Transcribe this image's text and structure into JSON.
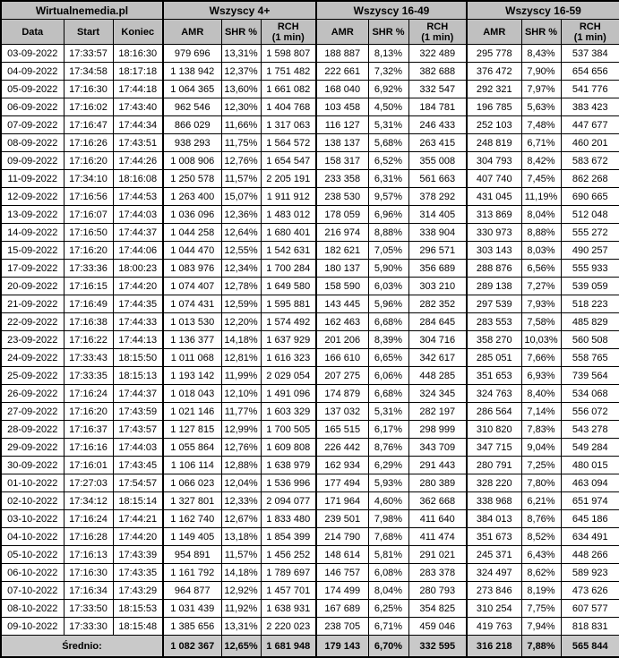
{
  "colors": {
    "header_bg": "#c0c0c0",
    "average_row_bg": "#c9c9c9",
    "row_bg": "#ffffff",
    "border": "#000000",
    "text": "#000000"
  },
  "chart_data": {
    "type": "table",
    "title": "Wirtualnemedia.pl",
    "column_groups": [
      {
        "label": "Wirtualnemedia.pl",
        "span": 3
      },
      {
        "label": "Wszyscy 4+",
        "span": 3
      },
      {
        "label": "Wszyscy 16-49",
        "span": 3
      },
      {
        "label": "Wszyscy 16-59",
        "span": 3
      }
    ],
    "columns": {
      "data": "Data",
      "start": "Start",
      "end": "Koniec",
      "amr": "AMR",
      "shr": "SHR %",
      "rch_line1": "RCH",
      "rch_line2": "(1 min)"
    },
    "rows": [
      [
        "03-09-2022",
        "17:33:57",
        "18:16:30",
        "979 696",
        "13,31%",
        "1 598 807",
        "188 887",
        "8,13%",
        "322 489",
        "295 778",
        "8,43%",
        "537 384"
      ],
      [
        "04-09-2022",
        "17:34:58",
        "18:17:18",
        "1 138 942",
        "12,37%",
        "1 751 482",
        "222 661",
        "7,32%",
        "382 688",
        "376 472",
        "7,90%",
        "654 656"
      ],
      [
        "05-09-2022",
        "17:16:30",
        "17:44:18",
        "1 064 365",
        "13,60%",
        "1 661 082",
        "168 040",
        "6,92%",
        "332 547",
        "292 321",
        "7,97%",
        "541 776"
      ],
      [
        "06-09-2022",
        "17:16:02",
        "17:43:40",
        "962 546",
        "12,30%",
        "1 404 768",
        "103 458",
        "4,50%",
        "184 781",
        "196 785",
        "5,63%",
        "383 423"
      ],
      [
        "07-09-2022",
        "17:16:47",
        "17:44:34",
        "866 029",
        "11,66%",
        "1 317 063",
        "116 127",
        "5,31%",
        "246 433",
        "252 103",
        "7,48%",
        "447 677"
      ],
      [
        "08-09-2022",
        "17:16:26",
        "17:43:51",
        "938 293",
        "11,75%",
        "1 564 572",
        "138 137",
        "5,68%",
        "263 415",
        "248 819",
        "6,71%",
        "460 201"
      ],
      [
        "09-09-2022",
        "17:16:20",
        "17:44:26",
        "1 008 906",
        "12,76%",
        "1 654 547",
        "158 317",
        "6,52%",
        "355 008",
        "304 793",
        "8,42%",
        "583 672"
      ],
      [
        "11-09-2022",
        "17:34:10",
        "18:16:08",
        "1 250 578",
        "11,57%",
        "2 205 191",
        "233 358",
        "6,31%",
        "561 663",
        "407 740",
        "7,45%",
        "862 268"
      ],
      [
        "12-09-2022",
        "17:16:56",
        "17:44:53",
        "1 263 400",
        "15,07%",
        "1 911 912",
        "238 530",
        "9,57%",
        "378 292",
        "431 045",
        "11,19%",
        "690 665"
      ],
      [
        "13-09-2022",
        "17:16:07",
        "17:44:03",
        "1 036 096",
        "12,36%",
        "1 483 012",
        "178 059",
        "6,96%",
        "314 405",
        "313 869",
        "8,04%",
        "512 048"
      ],
      [
        "14-09-2022",
        "17:16:50",
        "17:44:37",
        "1 044 258",
        "12,64%",
        "1 680 401",
        "216 974",
        "8,88%",
        "338 904",
        "330 973",
        "8,88%",
        "555 272"
      ],
      [
        "15-09-2022",
        "17:16:20",
        "17:44:06",
        "1 044 470",
        "12,55%",
        "1 542 631",
        "182 621",
        "7,05%",
        "296 571",
        "303 143",
        "8,03%",
        "490 257"
      ],
      [
        "17-09-2022",
        "17:33:36",
        "18:00:23",
        "1 083 976",
        "12,34%",
        "1 700 284",
        "180 137",
        "5,90%",
        "356 689",
        "288 876",
        "6,56%",
        "555 933"
      ],
      [
        "20-09-2022",
        "17:16:15",
        "17:44:20",
        "1 074 407",
        "12,78%",
        "1 649 580",
        "158 590",
        "6,03%",
        "303 210",
        "289 138",
        "7,27%",
        "539 059"
      ],
      [
        "21-09-2022",
        "17:16:49",
        "17:44:35",
        "1 074 431",
        "12,59%",
        "1 595 881",
        "143 445",
        "5,96%",
        "282 352",
        "297 539",
        "7,93%",
        "518 223"
      ],
      [
        "22-09-2022",
        "17:16:38",
        "17:44:33",
        "1 013 530",
        "12,20%",
        "1 574 492",
        "162 463",
        "6,68%",
        "284 645",
        "283 553",
        "7,58%",
        "485 829"
      ],
      [
        "23-09-2022",
        "17:16:22",
        "17:44:13",
        "1 136 377",
        "14,18%",
        "1 637 929",
        "201 206",
        "8,39%",
        "304 716",
        "358 270",
        "10,03%",
        "560 508"
      ],
      [
        "24-09-2022",
        "17:33:43",
        "18:15:50",
        "1 011 068",
        "12,81%",
        "1 616 323",
        "166 610",
        "6,65%",
        "342 617",
        "285 051",
        "7,66%",
        "558 765"
      ],
      [
        "25-09-2022",
        "17:33:35",
        "18:15:13",
        "1 193 142",
        "11,99%",
        "2 029 054",
        "207 275",
        "6,06%",
        "448 285",
        "351 653",
        "6,93%",
        "739 564"
      ],
      [
        "26-09-2022",
        "17:16:24",
        "17:44:37",
        "1 018 043",
        "12,10%",
        "1 491 096",
        "174 879",
        "6,68%",
        "324 345",
        "324 763",
        "8,40%",
        "534 068"
      ],
      [
        "27-09-2022",
        "17:16:20",
        "17:43:59",
        "1 021 146",
        "11,77%",
        "1 603 329",
        "137 032",
        "5,31%",
        "282 197",
        "286 564",
        "7,14%",
        "556 072"
      ],
      [
        "28-09-2022",
        "17:16:37",
        "17:43:57",
        "1 127 815",
        "12,99%",
        "1 700 505",
        "165 515",
        "6,17%",
        "298 999",
        "310 820",
        "7,83%",
        "543 278"
      ],
      [
        "29-09-2022",
        "17:16:16",
        "17:44:03",
        "1 055 864",
        "12,76%",
        "1 609 808",
        "226 442",
        "8,76%",
        "343 709",
        "347 715",
        "9,04%",
        "549 284"
      ],
      [
        "30-09-2022",
        "17:16:01",
        "17:43:45",
        "1 106 114",
        "12,88%",
        "1 638 979",
        "162 934",
        "6,29%",
        "291 443",
        "280 791",
        "7,25%",
        "480 015"
      ],
      [
        "01-10-2022",
        "17:27:03",
        "17:54:57",
        "1 066 023",
        "12,04%",
        "1 536 996",
        "177 494",
        "5,93%",
        "280 389",
        "328 220",
        "7,80%",
        "463 094"
      ],
      [
        "02-10-2022",
        "17:34:12",
        "18:15:14",
        "1 327 801",
        "12,33%",
        "2 094 077",
        "171 964",
        "4,60%",
        "362 668",
        "338 968",
        "6,21%",
        "651 974"
      ],
      [
        "03-10-2022",
        "17:16:24",
        "17:44:21",
        "1 162 740",
        "12,67%",
        "1 833 480",
        "239 501",
        "7,98%",
        "411 640",
        "384 013",
        "8,76%",
        "645 186"
      ],
      [
        "04-10-2022",
        "17:16:28",
        "17:44:20",
        "1 149 405",
        "13,18%",
        "1 854 399",
        "214 790",
        "7,68%",
        "411 474",
        "351 673",
        "8,52%",
        "634 491"
      ],
      [
        "05-10-2022",
        "17:16:13",
        "17:43:39",
        "954 891",
        "11,57%",
        "1 456 252",
        "148 614",
        "5,81%",
        "291 021",
        "245 371",
        "6,43%",
        "448 266"
      ],
      [
        "06-10-2022",
        "17:16:30",
        "17:43:35",
        "1 161 792",
        "14,18%",
        "1 789 697",
        "146 757",
        "6,08%",
        "283 378",
        "324 497",
        "8,62%",
        "589 923"
      ],
      [
        "07-10-2022",
        "17:16:34",
        "17:43:29",
        "964 877",
        "12,92%",
        "1 457 701",
        "174 499",
        "8,04%",
        "280 793",
        "273 846",
        "8,19%",
        "473 626"
      ],
      [
        "08-10-2022",
        "17:33:50",
        "18:15:53",
        "1 031 439",
        "11,92%",
        "1 638 931",
        "167 689",
        "6,25%",
        "354 825",
        "310 254",
        "7,75%",
        "607 577"
      ],
      [
        "09-10-2022",
        "17:33:30",
        "18:15:48",
        "1 385 656",
        "13,31%",
        "2 220 023",
        "238 705",
        "6,71%",
        "459 046",
        "419 763",
        "7,94%",
        "818 831"
      ]
    ],
    "average_label": "Średnio:",
    "average": [
      "1 082 367",
      "12,65%",
      "1 681 948",
      "179 143",
      "6,70%",
      "332 595",
      "316 218",
      "7,88%",
      "565 844"
    ]
  }
}
